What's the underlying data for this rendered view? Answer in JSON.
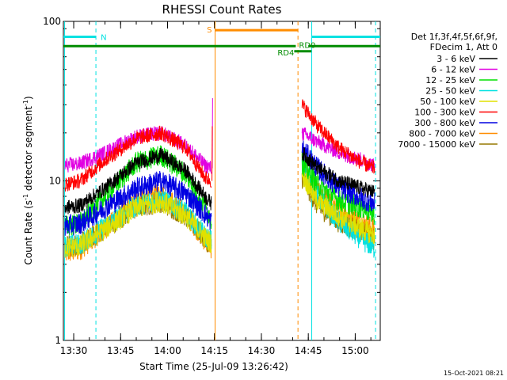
{
  "chart_data": {
    "type": "line",
    "title": "RHESSI Count Rates",
    "xlabel": "Start Time (25-Jul-09 13:26:42)",
    "ylabel": "Count Rate (s",
    "ylabel_sup1": "-1",
    "ylabel_mid": " detector segment",
    "ylabel_sup2": "-1",
    "ylabel_end": ")",
    "y_scale": "log",
    "ylim": [
      1,
      100
    ],
    "y_ticks": [
      {
        "value": 1,
        "label": "1"
      },
      {
        "value": 10,
        "label": "10"
      },
      {
        "value": 100,
        "label": "100"
      }
    ],
    "xlim_minutes": [
      806.7,
      908.0
    ],
    "x_ticks": [
      {
        "value": 810,
        "label": "13:30"
      },
      {
        "value": 825,
        "label": "13:45"
      },
      {
        "value": 840,
        "label": "14:00"
      },
      {
        "value": 855,
        "label": "14:15"
      },
      {
        "value": 870,
        "label": "14:30"
      },
      {
        "value": 885,
        "label": "14:45"
      },
      {
        "value": 900,
        "label": "15:00"
      }
    ],
    "legend_header": [
      "Det 1f,3f,4f,5f,6f,9f,",
      "FDecim 1, Att 0"
    ],
    "legend_placement": "right",
    "series": [
      {
        "name": "3 - 6 keV",
        "color": "#000000",
        "x": [
          807,
          812,
          820,
          830,
          838,
          846,
          852,
          854
        ],
        "y": [
          6.8,
          7.0,
          9.0,
          13.0,
          14.5,
          11.5,
          8.0,
          7.2
        ],
        "x2": [
          883,
          888,
          895,
          902,
          906
        ],
        "y2": [
          15.0,
          12.0,
          10.0,
          9.0,
          8.5
        ]
      },
      {
        "name": "6 - 12 keV",
        "color": "#e100e1",
        "x": [
          807,
          812,
          820,
          830,
          838,
          846,
          852,
          854
        ],
        "y": [
          12.5,
          12.8,
          15.0,
          19.0,
          20.0,
          16.5,
          12.5,
          12.0
        ],
        "x2": [
          883,
          888,
          895,
          902,
          906
        ],
        "y2": [
          20.0,
          17.5,
          15.0,
          13.5,
          12.5
        ]
      },
      {
        "name": "12 - 25 keV",
        "color": "#00e100",
        "x": [
          807,
          812,
          820,
          830,
          838,
          846,
          852,
          854
        ],
        "y": [
          5.2,
          5.4,
          8.0,
          13.0,
          14.5,
          11.0,
          6.8,
          5.8
        ],
        "x2": [
          883,
          888,
          895,
          902,
          906
        ],
        "y2": [
          13.0,
          9.5,
          7.5,
          6.8,
          6.2
        ]
      },
      {
        "name": "25 - 50 keV",
        "color": "#00e1e1",
        "x": [
          807,
          812,
          820,
          830,
          838,
          846,
          852,
          854
        ],
        "y": [
          3.9,
          4.0,
          5.2,
          7.0,
          7.8,
          6.3,
          4.5,
          4.2
        ],
        "x2": [
          883,
          888,
          895,
          902,
          906
        ],
        "y2": [
          13.0,
          8.0,
          5.5,
          4.3,
          3.8
        ]
      },
      {
        "name": "50 - 100 keV",
        "color": "#e1e100",
        "x": [
          807,
          812,
          820,
          830,
          838,
          846,
          852,
          854
        ],
        "y": [
          3.8,
          3.9,
          5.0,
          6.8,
          7.5,
          6.0,
          4.4,
          4.1
        ],
        "x2": [
          883,
          888,
          895,
          902,
          906
        ],
        "y2": [
          11.0,
          7.5,
          6.0,
          5.0,
          4.6
        ]
      },
      {
        "name": "100 - 300 keV",
        "color": "#ff0000",
        "x": [
          807,
          812,
          820,
          830,
          838,
          846,
          852,
          854
        ],
        "y": [
          9.5,
          10.0,
          13.5,
          18.5,
          20.0,
          16.0,
          10.5,
          10.0
        ],
        "x2": [
          883,
          888,
          895,
          902,
          906
        ],
        "y2": [
          30.0,
          22.0,
          16.0,
          13.0,
          12.0
        ]
      },
      {
        "name": "300 - 800 keV",
        "color": "#0000e1",
        "x": [
          807,
          812,
          820,
          830,
          838,
          846,
          852,
          854
        ],
        "y": [
          5.2,
          5.4,
          6.8,
          9.0,
          10.0,
          8.3,
          6.2,
          5.5
        ],
        "x2": [
          883,
          888,
          895,
          902,
          906
        ],
        "y2": [
          16.0,
          12.0,
          9.0,
          7.8,
          7.2
        ]
      },
      {
        "name": "800 - 7000 keV",
        "color": "#ff8c00",
        "x": [
          807,
          812,
          820,
          830,
          838,
          846,
          852,
          854
        ],
        "y": [
          3.5,
          3.7,
          5.0,
          7.5,
          8.3,
          6.2,
          4.2,
          3.8
        ],
        "x2": [
          883,
          888,
          895,
          902,
          906
        ],
        "y2": [
          12.5,
          8.5,
          6.5,
          5.5,
          5.0
        ]
      },
      {
        "name": "7000 - 15000 keV",
        "color": "#967800",
        "x": [
          807,
          812,
          820,
          830,
          838,
          846,
          852,
          854
        ],
        "y": [
          3.9,
          4.0,
          5.0,
          6.8,
          7.4,
          6.0,
          4.3,
          4.0
        ],
        "x2": [
          883,
          888,
          895,
          902,
          906
        ],
        "y2": [
          10.5,
          7.0,
          5.5,
          4.8,
          4.3
        ]
      }
    ],
    "annotations": [
      {
        "text": "N",
        "color": "#00e1e1",
        "kind": "night-bar",
        "segments": [
          [
            806.7,
            817.1
          ],
          [
            886.1,
            908.0
          ]
        ],
        "level": 80
      },
      {
        "text": "S",
        "color": "#ff8c00",
        "kind": "saa-bar",
        "segments": [
          [
            855.2,
            881.7
          ]
        ],
        "level": 88
      },
      {
        "text": "RD4",
        "color": "#008c00",
        "kind": "attenuator-bar",
        "segments": [
          [
            806.7,
            881.0
          ],
          [
            885.0,
            908.0
          ]
        ],
        "level": 70
      },
      {
        "text": "RD0",
        "color": "#008c00",
        "kind": "attenuator-bar",
        "segments": [
          [
            880.5,
            886.0
          ]
        ],
        "level": 65
      }
    ],
    "vertical_lines": [
      {
        "x": 807.1,
        "color": "#00e1e1",
        "style": "solid"
      },
      {
        "x": 817.1,
        "color": "#00e1e1",
        "style": "dashed"
      },
      {
        "x": 855.2,
        "color": "#ff8c00",
        "style": "solid"
      },
      {
        "x": 881.7,
        "color": "#ff8c00",
        "style": "dashed"
      },
      {
        "x": 886.1,
        "color": "#00e1e1",
        "style": "solid"
      },
      {
        "x": 906.5,
        "color": "#00e1e1",
        "style": "dashed"
      }
    ],
    "timestamp": "15-Oct-2021 08:21"
  }
}
